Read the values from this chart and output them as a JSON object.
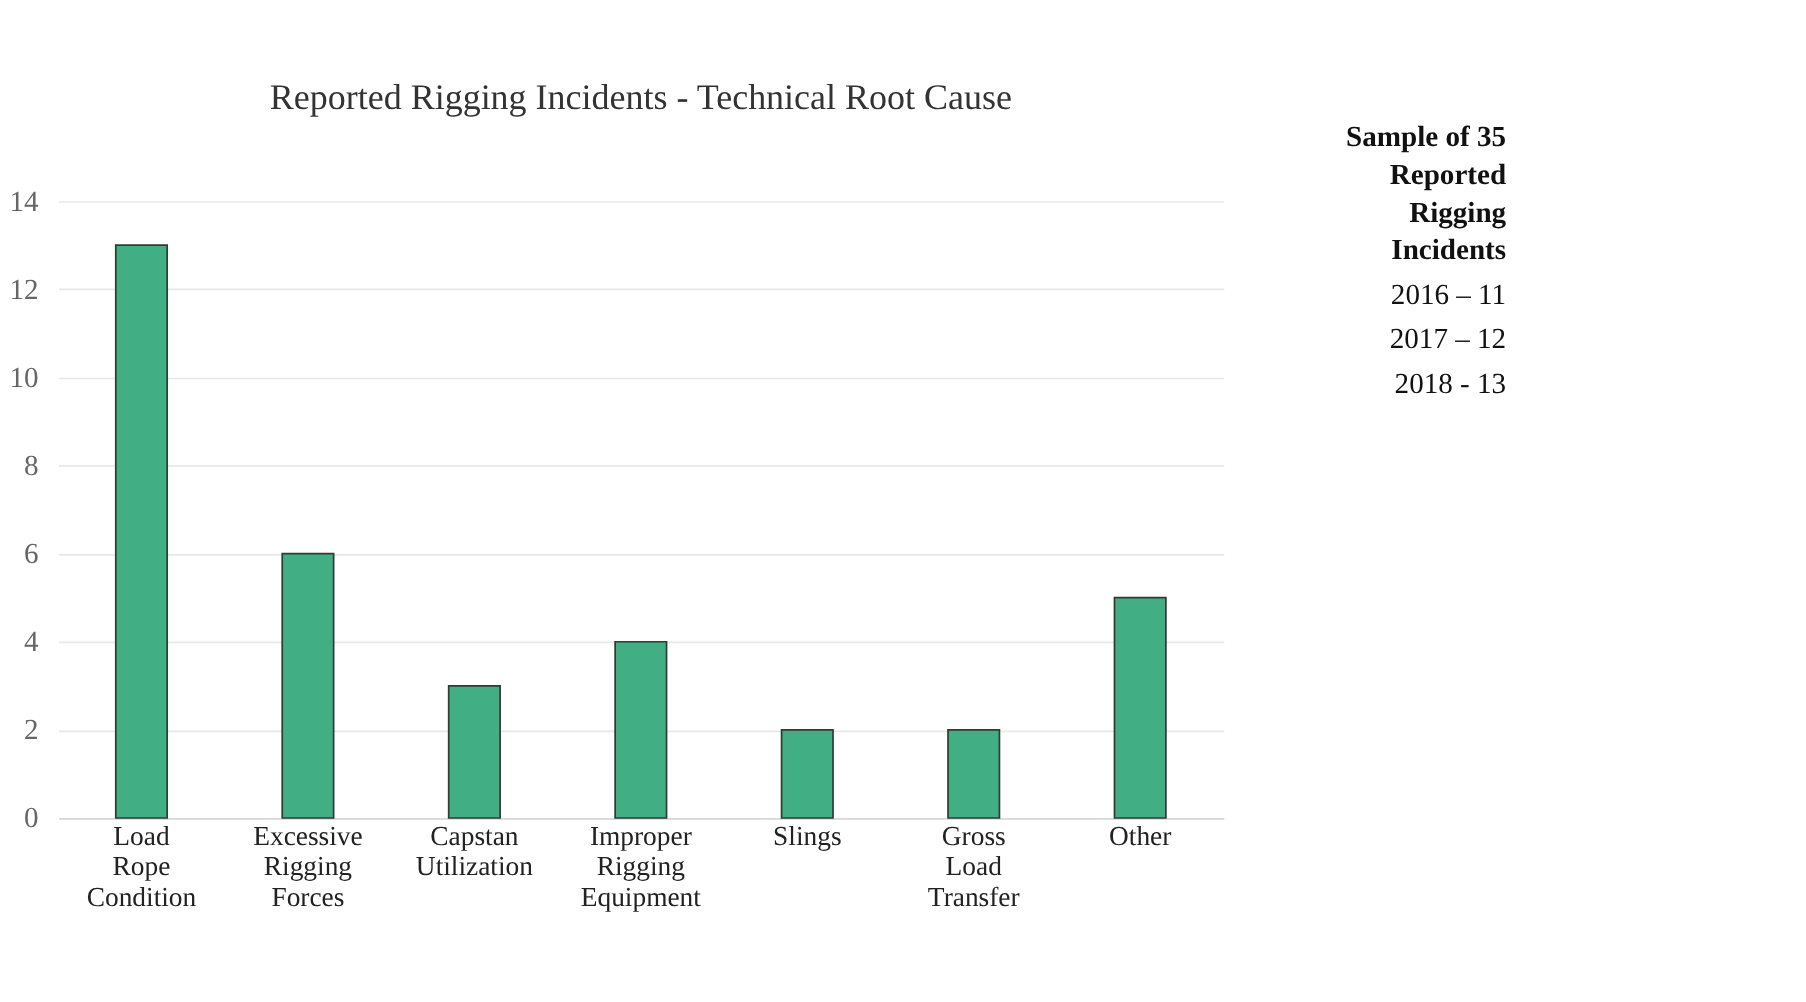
{
  "chart_data": {
    "type": "bar",
    "title": "Reported Rigging Incidents - Technical Root Cause",
    "categories": [
      "Load Rope Condition",
      "Excessive Rigging Forces",
      "Capstan Utilization",
      "Improper Rigging Equipment",
      "Slings",
      "Gross Load Transfer",
      "Other"
    ],
    "values": [
      13,
      6,
      3,
      4,
      2,
      2,
      5
    ],
    "color": "#41ae84",
    "ylim": [
      0,
      14
    ],
    "yticks": [
      0,
      2,
      4,
      6,
      8,
      10,
      12,
      14
    ],
    "grid": "y",
    "annotations": [
      "Sample of 35 Reported Rigging Incidents",
      "2016 – 11",
      "2017 – 12",
      "2018 - 13"
    ]
  }
}
